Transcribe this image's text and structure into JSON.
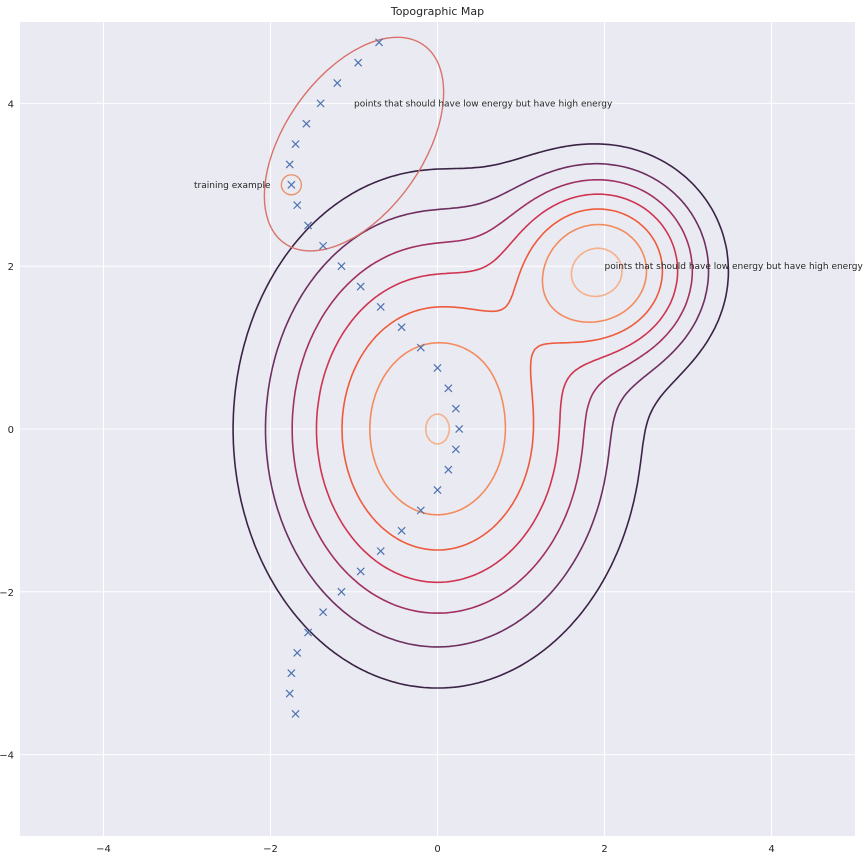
{
  "chart_data": {
    "type": "contour",
    "title": "Topographic Map",
    "xlabel": "",
    "ylabel": "",
    "xlim": [
      -5,
      5
    ],
    "ylim": [
      -5,
      5
    ],
    "xticks": [
      -4,
      -2,
      0,
      2,
      4
    ],
    "yticks": [
      -4,
      -2,
      0,
      2,
      4
    ],
    "xtick_labels": [
      "−4",
      "−2",
      "0",
      "2",
      "4"
    ],
    "ytick_labels": [
      "−4",
      "−2",
      "0",
      "2",
      "4"
    ],
    "grid": true,
    "background": "#eaeaf2",
    "grid_color": "#ffffff",
    "point_marker": "x",
    "point_color": "#4c72b0",
    "points": [
      [
        -0.7,
        4.75
      ],
      [
        -0.95,
        4.5
      ],
      [
        -1.2,
        4.25
      ],
      [
        -1.4,
        4.0
      ],
      [
        -1.57,
        3.75
      ],
      [
        -1.7,
        3.5
      ],
      [
        -1.77,
        3.25
      ],
      [
        -1.75,
        3.0
      ],
      [
        -1.68,
        2.75
      ],
      [
        -1.55,
        2.5
      ],
      [
        -1.37,
        2.25
      ],
      [
        -1.15,
        2.0
      ],
      [
        -0.92,
        1.75
      ],
      [
        -0.68,
        1.5
      ],
      [
        -0.43,
        1.25
      ],
      [
        -0.2,
        1.0
      ],
      [
        0.0,
        0.75
      ],
      [
        0.13,
        0.5
      ],
      [
        0.22,
        0.25
      ],
      [
        0.26,
        0.0
      ],
      [
        0.22,
        -0.25
      ],
      [
        0.13,
        -0.5
      ],
      [
        0.0,
        -0.75
      ],
      [
        -0.2,
        -1.0
      ],
      [
        -0.43,
        -1.25
      ],
      [
        -0.68,
        -1.5
      ],
      [
        -0.92,
        -1.75
      ],
      [
        -1.15,
        -2.0
      ],
      [
        -1.37,
        -2.25
      ],
      [
        -1.55,
        -2.5
      ],
      [
        -1.68,
        -2.75
      ],
      [
        -1.75,
        -3.0
      ],
      [
        -1.77,
        -3.25
      ],
      [
        -1.7,
        -3.5
      ]
    ],
    "contour_levels": [
      {
        "level": 1,
        "color": "#3b2345"
      },
      {
        "level": 2,
        "color": "#6e2f5f"
      },
      {
        "level": 3,
        "color": "#a03063"
      },
      {
        "level": 4,
        "color": "#cf3450"
      },
      {
        "level": 5,
        "color": "#ee5a3c"
      },
      {
        "level": 6,
        "color": "#f48b5e"
      },
      {
        "level": 7,
        "color": "#f6b08a"
      }
    ],
    "training_ellipse": {
      "center": [
        -1.0,
        3.5
      ],
      "rx": 1.45,
      "ry": 0.85,
      "angle_deg": 125,
      "color": "#d9726b"
    },
    "training_circle": {
      "center": [
        -1.75,
        3.0
      ],
      "r": 0.12,
      "color": "#e8936a"
    },
    "annotations": [
      {
        "text": "points that should have low energy but have high energy",
        "x": -1.0,
        "y": 4.0,
        "anchor": "start"
      },
      {
        "text": "training example",
        "x": -2.0,
        "y": 3.0,
        "anchor": "end"
      },
      {
        "text": "points that should have low energy but have high energy",
        "x": 2.0,
        "y": 2.0,
        "anchor": "start"
      }
    ]
  }
}
